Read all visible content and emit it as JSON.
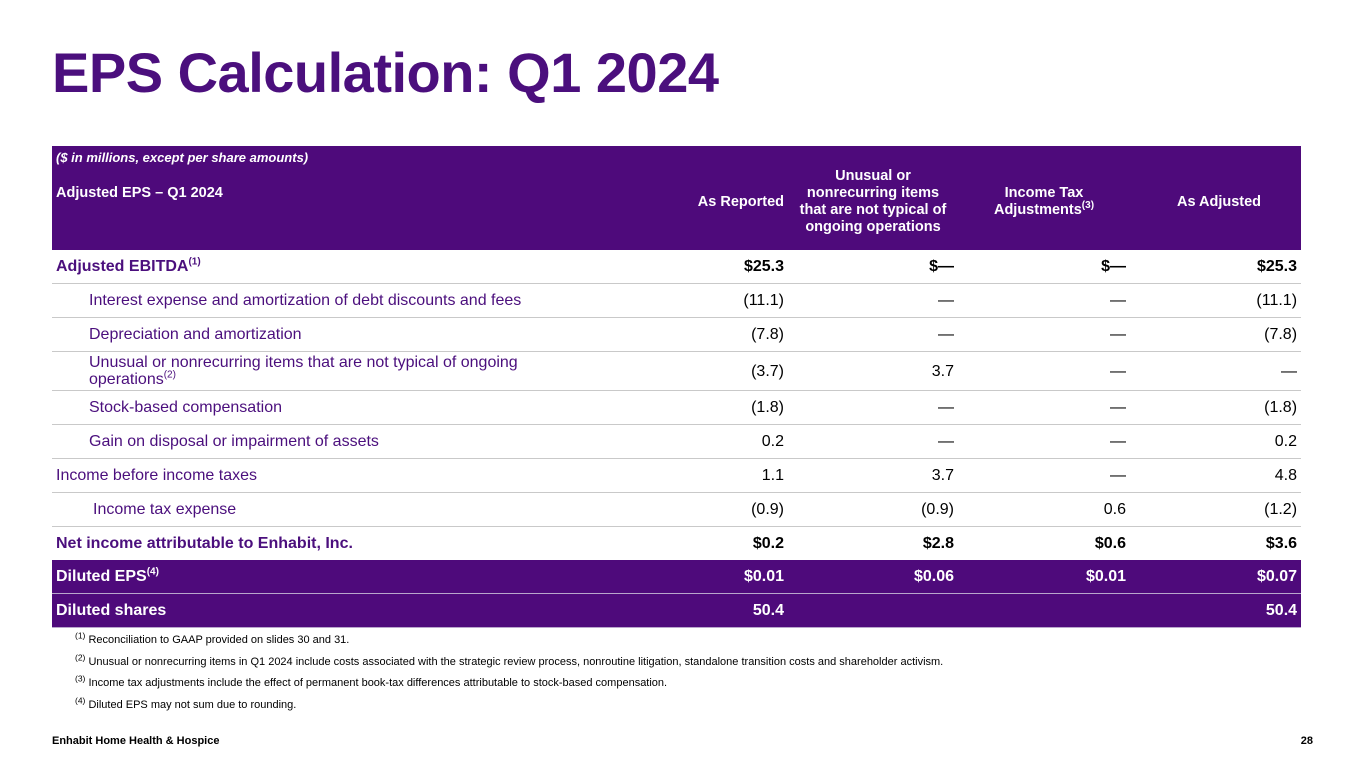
{
  "title": "EPS Calculation: Q1 2024",
  "table": {
    "note": "($ in millions, except per share amounts)",
    "header_label": "Adjusted EPS – Q1 2024",
    "columns": {
      "as_reported": "As Reported",
      "unusual_1": "Unusual or",
      "unusual_2": "nonrecurring items",
      "unusual_3": "that are not typical of",
      "unusual_4": "ongoing operations",
      "tax_1": "Income Tax",
      "tax_2": "Adjustments",
      "tax_sup": "(3)",
      "as_adjusted": "As Adjusted"
    },
    "rows": [
      {
        "label": "Adjusted EBITDA",
        "sup": "(1)",
        "as_reported": "$25.3",
        "unusual": "$—",
        "tax": "$—",
        "as_adjusted": "$25.3"
      },
      {
        "label": "Interest expense and amortization of debt discounts and fees",
        "as_reported": "(11.1)",
        "unusual": "—",
        "tax": "—",
        "as_adjusted": "(11.1)"
      },
      {
        "label": "Depreciation and amortization",
        "as_reported": "(7.8)",
        "unusual": "—",
        "tax": "—",
        "as_adjusted": "(7.8)"
      },
      {
        "label_1": "Unusual or nonrecurring items that are not typical of ongoing",
        "label_2": "operations",
        "sup": "(2)",
        "as_reported": "(3.7)",
        "unusual": "3.7",
        "tax": "—",
        "as_adjusted": "—"
      },
      {
        "label": "Stock-based compensation",
        "as_reported": "(1.8)",
        "unusual": "—",
        "tax": "—",
        "as_adjusted": "(1.8)"
      },
      {
        "label": "Gain on disposal or impairment of assets",
        "as_reported": "0.2",
        "unusual": "—",
        "tax": "—",
        "as_adjusted": "0.2"
      },
      {
        "label": "Income before income taxes",
        "as_reported": "1.1",
        "unusual": "3.7",
        "tax": "—",
        "as_adjusted": "4.8"
      },
      {
        "label": "Income tax expense",
        "as_reported": "(0.9)",
        "unusual": "(0.9)",
        "tax": "0.6",
        "as_adjusted": "(1.2)"
      },
      {
        "label": "Net income attributable to Enhabit, Inc.",
        "as_reported": "$0.2",
        "unusual": "$2.8",
        "tax": "$0.6",
        "as_adjusted": "$3.6"
      },
      {
        "label": "Diluted EPS",
        "sup": "(4)",
        "as_reported": "$0.01",
        "unusual": "$0.06",
        "tax": "$0.01",
        "as_adjusted": "$0.07"
      },
      {
        "label": "Diluted shares",
        "as_reported": "50.4",
        "unusual": "",
        "tax": "",
        "as_adjusted": "50.4"
      }
    ]
  },
  "footnotes": [
    {
      "num": "(1)",
      "text": "Reconciliation to GAAP provided on slides 30 and 31."
    },
    {
      "num": "(2)",
      "text": " Unusual or nonrecurring items in Q1 2024 include costs associated with the strategic review process, nonroutine litigation, standalone transition costs and shareholder activism."
    },
    {
      "num": "(3)",
      "text": "Income tax adjustments include the effect of permanent book-tax differences attributable to stock-based compensation."
    },
    {
      "num": "(4)",
      "text": "Diluted EPS may not sum due to rounding."
    }
  ],
  "footer": {
    "company": "Enhabit Home Health & Hospice",
    "page": "28"
  },
  "colors": {
    "brand_purple": "#4b0f7d",
    "header_purple": "#4e0a7b"
  }
}
